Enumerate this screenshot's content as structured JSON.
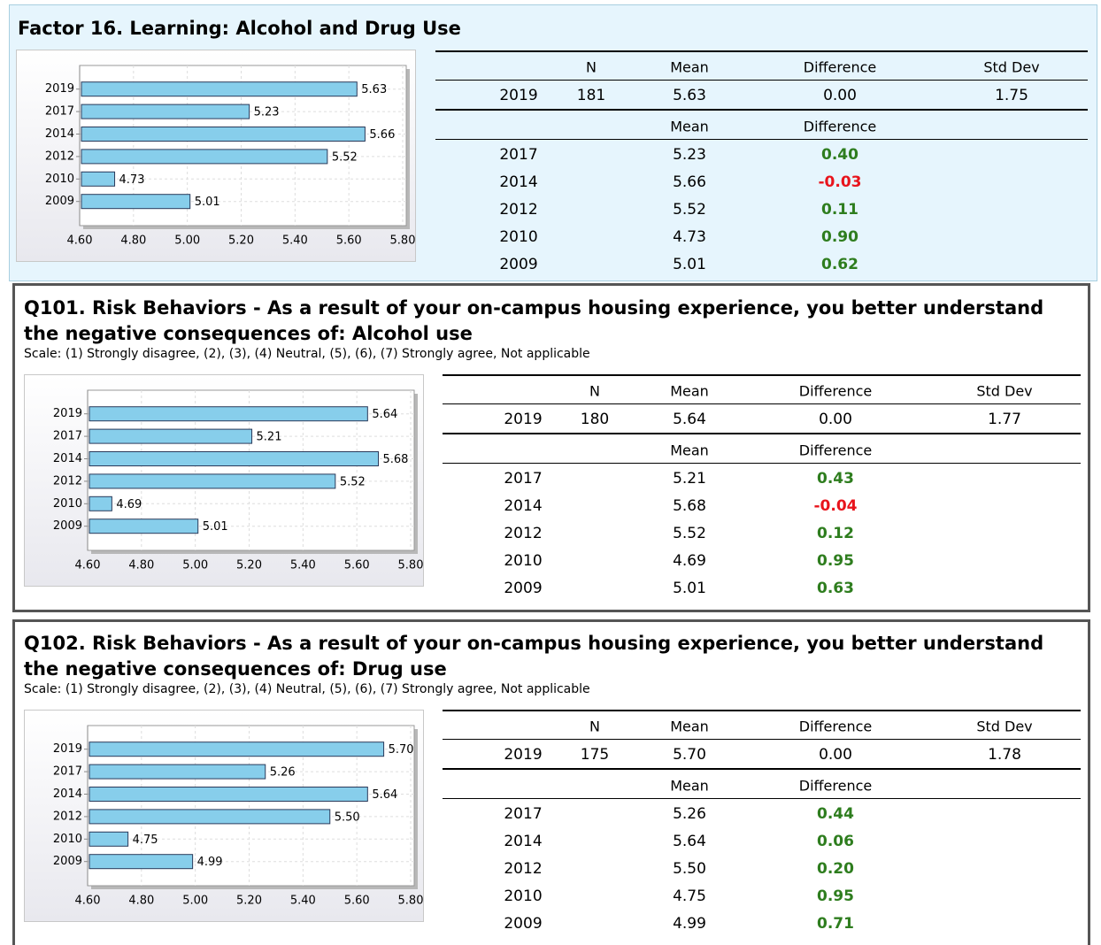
{
  "sections": [
    {
      "title": "Factor 16. Learning: Alcohol and Drug Use",
      "table": {
        "header": [
          "N",
          "Mean",
          "Difference",
          "Std Dev"
        ],
        "main_row": [
          "2019",
          "181",
          "5.63",
          "0.00",
          "1.75"
        ],
        "subheader": [
          "Mean",
          "Difference"
        ],
        "rows": [
          [
            "2017",
            "5.23",
            "0.40"
          ],
          [
            "2014",
            "5.66",
            "-0.03"
          ],
          [
            "2012",
            "5.52",
            "0.11"
          ],
          [
            "2010",
            "4.73",
            "0.90"
          ],
          [
            "2009",
            "5.01",
            "0.62"
          ]
        ]
      }
    },
    {
      "title": "Q101. Risk Behaviors - As a result of your on-campus housing experience, you better understand the negative consequences of: Alcohol use",
      "scale": "Scale: (1) Strongly disagree, (2), (3), (4) Neutral, (5), (6), (7) Strongly agree, Not applicable",
      "table": {
        "header": [
          "N",
          "Mean",
          "Difference",
          "Std Dev"
        ],
        "main_row": [
          "2019",
          "180",
          "5.64",
          "0.00",
          "1.77"
        ],
        "subheader": [
          "Mean",
          "Difference"
        ],
        "rows": [
          [
            "2017",
            "5.21",
            "0.43"
          ],
          [
            "2014",
            "5.68",
            "-0.04"
          ],
          [
            "2012",
            "5.52",
            "0.12"
          ],
          [
            "2010",
            "4.69",
            "0.95"
          ],
          [
            "2009",
            "5.01",
            "0.63"
          ]
        ]
      }
    },
    {
      "title": "Q102. Risk Behaviors - As a result of your on-campus housing experience, you better understand the negative consequences of: Drug use",
      "scale": "Scale: (1) Strongly disagree, (2), (3), (4) Neutral, (5), (6), (7) Strongly agree, Not applicable",
      "table": {
        "header": [
          "N",
          "Mean",
          "Difference",
          "Std Dev"
        ],
        "main_row": [
          "2019",
          "175",
          "5.70",
          "0.00",
          "1.78"
        ],
        "subheader": [
          "Mean",
          "Difference"
        ],
        "rows": [
          [
            "2017",
            "5.26",
            "0.44"
          ],
          [
            "2014",
            "5.64",
            "0.06"
          ],
          [
            "2012",
            "5.50",
            "0.20"
          ],
          [
            "2010",
            "4.75",
            "0.95"
          ],
          [
            "2009",
            "4.99",
            "0.71"
          ]
        ]
      }
    }
  ],
  "chart_data": [
    {
      "type": "bar",
      "orientation": "horizontal",
      "categories": [
        "2019",
        "2017",
        "2014",
        "2012",
        "2010",
        "2009"
      ],
      "values": [
        5.63,
        5.23,
        5.66,
        5.52,
        4.73,
        5.01
      ],
      "value_labels": [
        "5.63",
        "5.23",
        "5.66",
        "5.52",
        "4.73",
        "5.01"
      ],
      "color": "#87ceeb",
      "xlim": [
        4.6,
        5.8
      ],
      "xticks": [
        {
          "value": 4.6,
          "label": "4.60"
        },
        {
          "value": 4.8,
          "label": "4.80"
        },
        {
          "value": 5.0,
          "label": "5.00"
        },
        {
          "value": 5.2,
          "label": "5.20"
        },
        {
          "value": 5.4,
          "label": "5.40"
        },
        {
          "value": 5.6,
          "label": "5.60"
        },
        {
          "value": 5.8,
          "label": "5.80"
        }
      ],
      "grid": true
    },
    {
      "type": "bar",
      "orientation": "horizontal",
      "categories": [
        "2019",
        "2017",
        "2014",
        "2012",
        "2010",
        "2009"
      ],
      "values": [
        5.64,
        5.21,
        5.68,
        5.52,
        4.69,
        5.01
      ],
      "value_labels": [
        "5.64",
        "5.21",
        "5.68",
        "5.52",
        "4.69",
        "5.01"
      ],
      "color": "#87ceeb",
      "xlim": [
        4.6,
        5.8
      ],
      "xticks": [
        {
          "value": 4.6,
          "label": "4.60"
        },
        {
          "value": 4.8,
          "label": "4.80"
        },
        {
          "value": 5.0,
          "label": "5.00"
        },
        {
          "value": 5.2,
          "label": "5.20"
        },
        {
          "value": 5.4,
          "label": "5.40"
        },
        {
          "value": 5.6,
          "label": "5.60"
        },
        {
          "value": 5.8,
          "label": "5.80"
        }
      ],
      "grid": true
    },
    {
      "type": "bar",
      "orientation": "horizontal",
      "categories": [
        "2019",
        "2017",
        "2014",
        "2012",
        "2010",
        "2009"
      ],
      "values": [
        5.7,
        5.26,
        5.64,
        5.5,
        4.75,
        4.99
      ],
      "value_labels": [
        "5.70",
        "5.26",
        "5.64",
        "5.50",
        "4.75",
        "4.99"
      ],
      "color": "#87ceeb",
      "xlim": [
        4.6,
        5.8
      ],
      "xticks": [
        {
          "value": 4.6,
          "label": "4.60"
        },
        {
          "value": 4.8,
          "label": "4.80"
        },
        {
          "value": 5.0,
          "label": "5.00"
        },
        {
          "value": 5.2,
          "label": "5.20"
        },
        {
          "value": 5.4,
          "label": "5.40"
        },
        {
          "value": 5.6,
          "label": "5.60"
        },
        {
          "value": 5.8,
          "label": "5.80"
        }
      ],
      "grid": true
    }
  ]
}
